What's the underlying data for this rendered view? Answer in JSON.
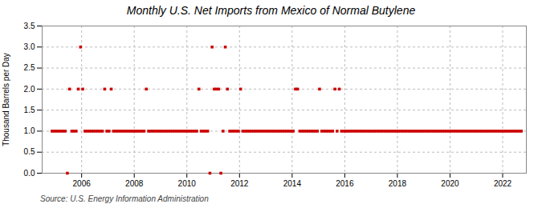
{
  "chart_data": {
    "type": "scatter",
    "title": "Monthly U.S. Net Imports from Mexico of Normal Butylene",
    "ylabel": "Thousand Barrels per Day",
    "annotations": [
      "Source: U.S. Energy Information Administration"
    ],
    "color": "#cc0000",
    "marker": "square",
    "grid": true,
    "xlim": [
      2004.5,
      2022.9
    ],
    "xticks": [
      2006,
      2008,
      2010,
      2012,
      2014,
      2016,
      2018,
      2020,
      2022
    ],
    "ylim": [
      0,
      3.5
    ],
    "yticks": [
      {
        "value": 0,
        "label": "0.0"
      },
      0.5,
      {
        "value": 1,
        "label": "1.0"
      },
      1.5,
      {
        "value": 2,
        "label": "2.0"
      },
      2.5,
      {
        "value": 3,
        "label": "3.0"
      },
      3.5
    ],
    "x": [
      2004.875,
      2004.9583333333333,
      2005.0416666666667,
      2005.125,
      2005.2083333333333,
      2005.2916666666667,
      2005.375,
      2005.4583333333333,
      2005.5416666666667,
      2005.625,
      2005.7083333333333,
      2005.7916666666667,
      2005.875,
      2005.9583333333333,
      2006.0416666666667,
      2006.125,
      2006.2083333333333,
      2006.2916666666667,
      2006.375,
      2006.4583333333333,
      2006.5416666666667,
      2006.625,
      2006.7083333333333,
      2006.7916666666667,
      2006.875,
      2006.9583333333333,
      2007.0416666666667,
      2007.125,
      2007.2083333333333,
      2007.2916666666667,
      2007.375,
      2007.4583333333333,
      2007.5416666666667,
      2007.625,
      2007.7083333333333,
      2007.7916666666667,
      2007.875,
      2007.9583333333333,
      2008.0416666666667,
      2008.125,
      2008.2083333333333,
      2008.2916666666667,
      2008.375,
      2008.4583333333333,
      2008.5416666666667,
      2008.625,
      2008.7083333333333,
      2008.7916666666667,
      2008.875,
      2008.9583333333333,
      2009.0416666666667,
      2009.125,
      2009.2083333333333,
      2009.2916666666667,
      2009.375,
      2009.4583333333333,
      2009.5416666666667,
      2009.625,
      2009.7083333333333,
      2009.7916666666667,
      2009.875,
      2009.9583333333333,
      2010.0416666666667,
      2010.125,
      2010.2083333333333,
      2010.2916666666667,
      2010.375,
      2010.4583333333333,
      2010.5416666666667,
      2010.625,
      2010.7083333333333,
      2010.7916666666667,
      2010.875,
      2010.9583333333333,
      2011.0416666666667,
      2011.125,
      2011.2083333333333,
      2011.2916666666667,
      2011.375,
      2011.4583333333333,
      2011.5416666666667,
      2011.625,
      2011.7083333333333,
      2011.7916666666667,
      2011.875,
      2011.9583333333333,
      2012.0416666666667,
      2012.125,
      2012.2083333333333,
      2012.2916666666667,
      2012.375,
      2012.4583333333333,
      2012.5416666666667,
      2012.625,
      2012.7083333333333,
      2012.7916666666667,
      2012.875,
      2012.9583333333333,
      2013.0416666666667,
      2013.125,
      2013.2083333333333,
      2013.2916666666667,
      2013.375,
      2013.4583333333333,
      2013.5416666666667,
      2013.625,
      2013.7083333333333,
      2013.7916666666667,
      2013.875,
      2013.9583333333333,
      2014.0416666666667,
      2014.125,
      2014.2083333333333,
      2014.2916666666667,
      2014.375,
      2014.4583333333333,
      2014.5416666666667,
      2014.625,
      2014.7083333333333,
      2014.7916666666667,
      2014.875,
      2014.9583333333333,
      2015.0416666666667,
      2015.125,
      2015.2083333333333,
      2015.2916666666667,
      2015.375,
      2015.4583333333333,
      2015.5416666666667,
      2015.625,
      2015.7083333333333,
      2015.7916666666667,
      2015.875,
      2015.9583333333333,
      2016.0416666666667,
      2016.125,
      2016.2083333333333,
      2016.2916666666667,
      2016.375,
      2016.4583333333333,
      2016.5416666666667,
      2016.625,
      2016.7083333333333,
      2016.7916666666667,
      2016.875,
      2016.9583333333333,
      2017.0416666666667,
      2017.125,
      2017.2083333333333,
      2017.2916666666667,
      2017.375,
      2017.4583333333333,
      2017.5416666666667,
      2017.625,
      2017.7083333333333,
      2017.7916666666667,
      2017.875,
      2017.9583333333333,
      2018.0416666666667,
      2018.125,
      2018.2083333333333,
      2018.2916666666667,
      2018.375,
      2018.4583333333333,
      2018.5416666666667,
      2018.625,
      2018.7083333333333,
      2018.7916666666667,
      2018.875,
      2018.9583333333333,
      2019.0416666666667,
      2019.125,
      2019.2083333333333,
      2019.2916666666667,
      2019.375,
      2019.4583333333333,
      2019.5416666666667,
      2019.625,
      2019.7083333333333,
      2019.7916666666667,
      2019.875,
      2019.9583333333333,
      2020.0416666666667,
      2020.125,
      2020.2083333333333,
      2020.2916666666667,
      2020.375,
      2020.4583333333333,
      2020.5416666666667,
      2020.625,
      2020.7083333333333,
      2020.7916666666667,
      2020.875,
      2020.9583333333333,
      2021.0416666666667,
      2021.125,
      2021.2083333333333,
      2021.2916666666667,
      2021.375,
      2021.4583333333333,
      2021.5416666666667,
      2021.625,
      2021.7083333333333,
      2021.7916666666667,
      2021.875,
      2021.9583333333333,
      2022.0416666666667,
      2022.125,
      2022.2083333333333,
      2022.2916666666667,
      2022.375,
      2022.4583333333333,
      2022.5416666666667,
      2022.625,
      2022.7083333333333
    ],
    "values": [
      1,
      1,
      1,
      1,
      1,
      1,
      1,
      0,
      2,
      1,
      1,
      1,
      2,
      3,
      2,
      1,
      1,
      1,
      1,
      1,
      1,
      1,
      1,
      1,
      2,
      1,
      1,
      2,
      1,
      1,
      1,
      1,
      1,
      1,
      1,
      1,
      1,
      1,
      1,
      1,
      1,
      1,
      1,
      2,
      1,
      1,
      1,
      1,
      1,
      1,
      1,
      1,
      1,
      1,
      1,
      1,
      1,
      1,
      1,
      1,
      1,
      1,
      1,
      1,
      1,
      1,
      1,
      2,
      1,
      1,
      1,
      1,
      0,
      3,
      2,
      2,
      2,
      0,
      1,
      3,
      2,
      1,
      1,
      1,
      1,
      1,
      2,
      1,
      1,
      1,
      1,
      1,
      1,
      1,
      1,
      1,
      1,
      1,
      1,
      1,
      1,
      1,
      1,
      1,
      1,
      1,
      1,
      1,
      1,
      1,
      1,
      2,
      2,
      1,
      1,
      1,
      1,
      1,
      1,
      1,
      1,
      1,
      2,
      1,
      1,
      1,
      1,
      1,
      1,
      2,
      1,
      2,
      1,
      1,
      1,
      1,
      1,
      1,
      1,
      1,
      1,
      1,
      1,
      1,
      1,
      1,
      1,
      1,
      1,
      1,
      1,
      1,
      1,
      1,
      1,
      1,
      1,
      1,
      1,
      1,
      1,
      1,
      1,
      1,
      1,
      1,
      1,
      1,
      1,
      1,
      1,
      1,
      1,
      1,
      1,
      1,
      1,
      1,
      1,
      1,
      1,
      1,
      1,
      1,
      1,
      1,
      1,
      1,
      1,
      1,
      1,
      1,
      1,
      1,
      1,
      1,
      1,
      1,
      1,
      1,
      1,
      1,
      1,
      1,
      1,
      1,
      1,
      1,
      1,
      1,
      1,
      1,
      1,
      1,
      1
    ]
  }
}
